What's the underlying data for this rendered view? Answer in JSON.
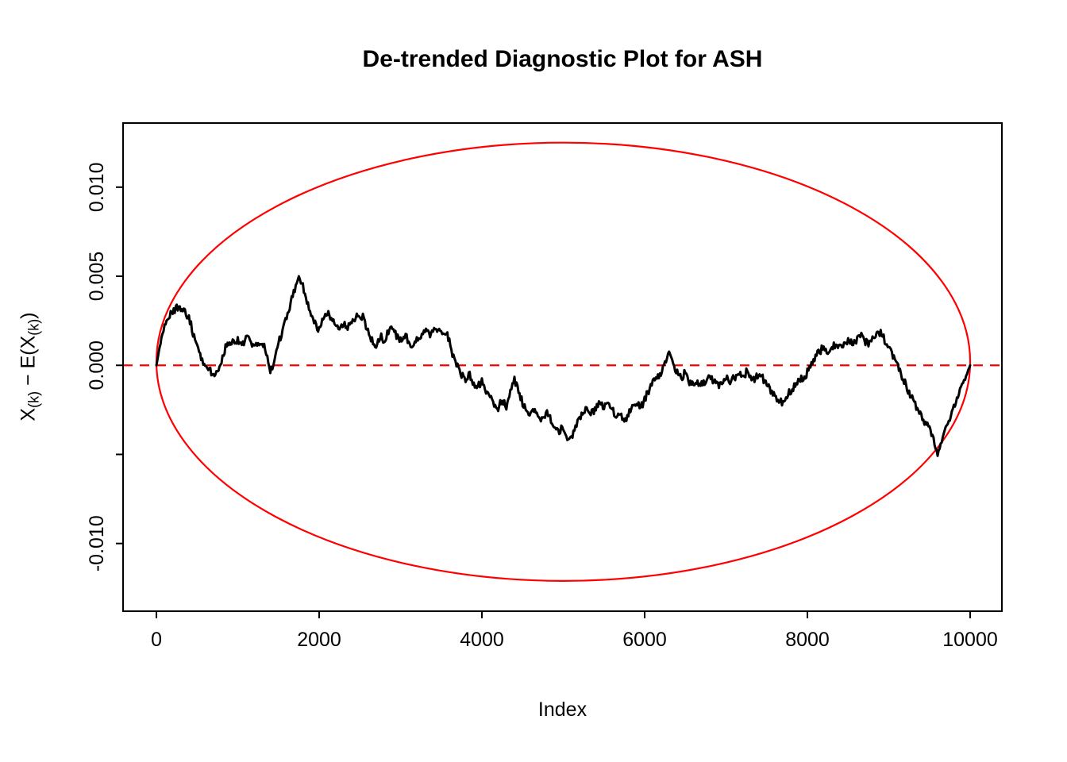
{
  "figure": {
    "background": "#FFFFFF"
  },
  "chart_data": {
    "type": "line",
    "title": "De-trended Diagnostic Plot for ASH",
    "xlabel": "Index",
    "ylabel": "X(k) − E(X(k))",
    "ylabel_parts": [
      {
        "text": "X",
        "sub": false
      },
      {
        "text": "(k)",
        "sub": true
      },
      {
        "text": " − E(X",
        "sub": false
      },
      {
        "text": "(k)",
        "sub": true
      },
      {
        "text": ")",
        "sub": false
      }
    ],
    "xlim": [
      -410,
      10390
    ],
    "ylim": [
      -0.0138,
      0.0136
    ],
    "grid": false,
    "legend": "none",
    "x_ticks": {
      "values": [
        0,
        2000,
        4000,
        6000,
        8000,
        10000
      ],
      "labels": [
        "0",
        "2000",
        "4000",
        "6000",
        "8000",
        "10000"
      ]
    },
    "y_ticks": {
      "values": [
        0.01,
        0.005,
        0.0,
        -0.005,
        -0.01
      ],
      "labels": [
        "0.010",
        "0.005",
        "0.000",
        "",
        "-0.010"
      ]
    },
    "colors": {
      "series": "#000000",
      "envelope": "#FF0000",
      "zero_line": "#FF0000",
      "axis": "#000000"
    },
    "zero_line": {
      "y": 0,
      "style": "dashed"
    },
    "envelope_ellipse": {
      "cx": 5000,
      "cy": 0.0002,
      "rx": 5000,
      "ry": 0.0123
    },
    "series": [
      {
        "name": "detrended-order-statistics",
        "points": [
          [
            0,
            0.0
          ],
          [
            30,
            0.0008
          ],
          [
            60,
            0.0015
          ],
          [
            100,
            0.0022
          ],
          [
            150,
            0.0027
          ],
          [
            200,
            0.003
          ],
          [
            250,
            0.0033
          ],
          [
            300,
            0.0032
          ],
          [
            350,
            0.003
          ],
          [
            400,
            0.0027
          ],
          [
            450,
            0.0018
          ],
          [
            500,
            0.001
          ],
          [
            550,
            0.0004
          ],
          [
            600,
            0.0001
          ],
          [
            650,
            -0.0002
          ],
          [
            700,
            -0.0006
          ],
          [
            750,
            -0.0004
          ],
          [
            800,
            0.0002
          ],
          [
            850,
            0.001
          ],
          [
            900,
            0.0014
          ],
          [
            950,
            0.0012
          ],
          [
            1000,
            0.0015
          ],
          [
            1050,
            0.0011
          ],
          [
            1100,
            0.0016
          ],
          [
            1150,
            0.0013
          ],
          [
            1200,
            0.001
          ],
          [
            1250,
            0.0013
          ],
          [
            1300,
            0.0014
          ],
          [
            1350,
            0.0006
          ],
          [
            1400,
            -0.0003
          ],
          [
            1450,
            0.0002
          ],
          [
            1500,
            0.0012
          ],
          [
            1550,
            0.002
          ],
          [
            1600,
            0.0028
          ],
          [
            1650,
            0.0035
          ],
          [
            1700,
            0.0043
          ],
          [
            1750,
            0.005
          ],
          [
            1800,
            0.0044
          ],
          [
            1850,
            0.0036
          ],
          [
            1900,
            0.003
          ],
          [
            1950,
            0.0024
          ],
          [
            2000,
            0.002
          ],
          [
            2050,
            0.0026
          ],
          [
            2100,
            0.003
          ],
          [
            2150,
            0.0027
          ],
          [
            2200,
            0.0022
          ],
          [
            2250,
            0.002
          ],
          [
            2300,
            0.0024
          ],
          [
            2350,
            0.0021
          ],
          [
            2400,
            0.0024
          ],
          [
            2450,
            0.0027
          ],
          [
            2500,
            0.0029
          ],
          [
            2550,
            0.0026
          ],
          [
            2600,
            0.0019
          ],
          [
            2650,
            0.0014
          ],
          [
            2700,
            0.0011
          ],
          [
            2750,
            0.0017
          ],
          [
            2800,
            0.0014
          ],
          [
            2850,
            0.0019
          ],
          [
            2900,
            0.0021
          ],
          [
            2950,
            0.0017
          ],
          [
            3000,
            0.0014
          ],
          [
            3050,
            0.0017
          ],
          [
            3100,
            0.0014
          ],
          [
            3150,
            0.0011
          ],
          [
            3200,
            0.0014
          ],
          [
            3250,
            0.0017
          ],
          [
            3300,
            0.0019
          ],
          [
            3350,
            0.0017
          ],
          [
            3400,
            0.0019
          ],
          [
            3450,
            0.0021
          ],
          [
            3500,
            0.0017
          ],
          [
            3550,
            0.0019
          ],
          [
            3600,
            0.0014
          ],
          [
            3650,
            0.0004
          ],
          [
            3700,
            -0.0001
          ],
          [
            3750,
            -0.0006
          ],
          [
            3800,
            -0.0008
          ],
          [
            3850,
            -0.0005
          ],
          [
            3900,
            -0.001
          ],
          [
            3950,
            -0.0012
          ],
          [
            4000,
            -0.0009
          ],
          [
            4050,
            -0.0014
          ],
          [
            4100,
            -0.0019
          ],
          [
            4150,
            -0.0021
          ],
          [
            4200,
            -0.0024
          ],
          [
            4250,
            -0.0019
          ],
          [
            4300,
            -0.0024
          ],
          [
            4350,
            -0.0014
          ],
          [
            4400,
            -0.0008
          ],
          [
            4450,
            -0.0015
          ],
          [
            4500,
            -0.0021
          ],
          [
            4550,
            -0.0025
          ],
          [
            4600,
            -0.0028
          ],
          [
            4650,
            -0.0024
          ],
          [
            4700,
            -0.0029
          ],
          [
            4750,
            -0.0031
          ],
          [
            4800,
            -0.0027
          ],
          [
            4850,
            -0.0031
          ],
          [
            4900,
            -0.0034
          ],
          [
            4950,
            -0.0037
          ],
          [
            5000,
            -0.0034
          ],
          [
            5050,
            -0.0044
          ],
          [
            5100,
            -0.0041
          ],
          [
            5150,
            -0.0034
          ],
          [
            5200,
            -0.0029
          ],
          [
            5250,
            -0.0027
          ],
          [
            5300,
            -0.0024
          ],
          [
            5350,
            -0.0027
          ],
          [
            5400,
            -0.0024
          ],
          [
            5450,
            -0.0021
          ],
          [
            5500,
            -0.0024
          ],
          [
            5550,
            -0.0021
          ],
          [
            5600,
            -0.0024
          ],
          [
            5650,
            -0.0029
          ],
          [
            5700,
            -0.0027
          ],
          [
            5750,
            -0.0031
          ],
          [
            5800,
            -0.0027
          ],
          [
            5850,
            -0.0024
          ],
          [
            5900,
            -0.0021
          ],
          [
            5950,
            -0.0024
          ],
          [
            6000,
            -0.0019
          ],
          [
            6050,
            -0.0014
          ],
          [
            6100,
            -0.0009
          ],
          [
            6150,
            -0.0007
          ],
          [
            6200,
            -0.0004
          ],
          [
            6250,
            0.0001
          ],
          [
            6300,
            0.0006
          ],
          [
            6350,
            0.0001
          ],
          [
            6400,
            -0.0004
          ],
          [
            6450,
            -0.0007
          ],
          [
            6500,
            -0.0004
          ],
          [
            6550,
            -0.0009
          ],
          [
            6600,
            -0.0011
          ],
          [
            6650,
            -0.0009
          ],
          [
            6700,
            -0.0011
          ],
          [
            6750,
            -0.0009
          ],
          [
            6800,
            -0.0007
          ],
          [
            6850,
            -0.0009
          ],
          [
            6900,
            -0.0011
          ],
          [
            6950,
            -0.0009
          ],
          [
            7000,
            -0.0007
          ],
          [
            7050,
            -0.0009
          ],
          [
            7100,
            -0.0007
          ],
          [
            7150,
            -0.0004
          ],
          [
            7200,
            -0.0007
          ],
          [
            7250,
            -0.0004
          ],
          [
            7300,
            -0.0007
          ],
          [
            7350,
            -0.0009
          ],
          [
            7400,
            -0.0004
          ],
          [
            7450,
            -0.0007
          ],
          [
            7500,
            -0.0011
          ],
          [
            7550,
            -0.0014
          ],
          [
            7600,
            -0.0017
          ],
          [
            7650,
            -0.0019
          ],
          [
            7700,
            -0.0021
          ],
          [
            7750,
            -0.0017
          ],
          [
            7800,
            -0.0014
          ],
          [
            7850,
            -0.0011
          ],
          [
            7900,
            -0.0009
          ],
          [
            7950,
            -0.0007
          ],
          [
            8000,
            -0.0004
          ],
          [
            8050,
            0.0001
          ],
          [
            8100,
            0.0005
          ],
          [
            8150,
            0.0008
          ],
          [
            8200,
            0.001
          ],
          [
            8250,
            0.0008
          ],
          [
            8300,
            0.001
          ],
          [
            8350,
            0.0012
          ],
          [
            8400,
            0.001
          ],
          [
            8450,
            0.0012
          ],
          [
            8500,
            0.0014
          ],
          [
            8550,
            0.0012
          ],
          [
            8600,
            0.0014
          ],
          [
            8650,
            0.0017
          ],
          [
            8700,
            0.0014
          ],
          [
            8750,
            0.0012
          ],
          [
            8800,
            0.0015
          ],
          [
            8850,
            0.0017
          ],
          [
            8900,
            0.0019
          ],
          [
            8950,
            0.0014
          ],
          [
            9000,
            0.001
          ],
          [
            9050,
            0.0005
          ],
          [
            9100,
            0.0
          ],
          [
            9150,
            -0.0005
          ],
          [
            9200,
            -0.001
          ],
          [
            9250,
            -0.0015
          ],
          [
            9300,
            -0.0019
          ],
          [
            9350,
            -0.0024
          ],
          [
            9400,
            -0.0029
          ],
          [
            9450,
            -0.0032
          ],
          [
            9500,
            -0.0036
          ],
          [
            9550,
            -0.0042
          ],
          [
            9600,
            -0.005
          ],
          [
            9650,
            -0.0044
          ],
          [
            9700,
            -0.0036
          ],
          [
            9750,
            -0.003
          ],
          [
            9800,
            -0.0024
          ],
          [
            9850,
            -0.0017
          ],
          [
            9900,
            -0.0011
          ],
          [
            9950,
            -0.0006
          ],
          [
            10000,
            0.0
          ]
        ]
      }
    ]
  }
}
